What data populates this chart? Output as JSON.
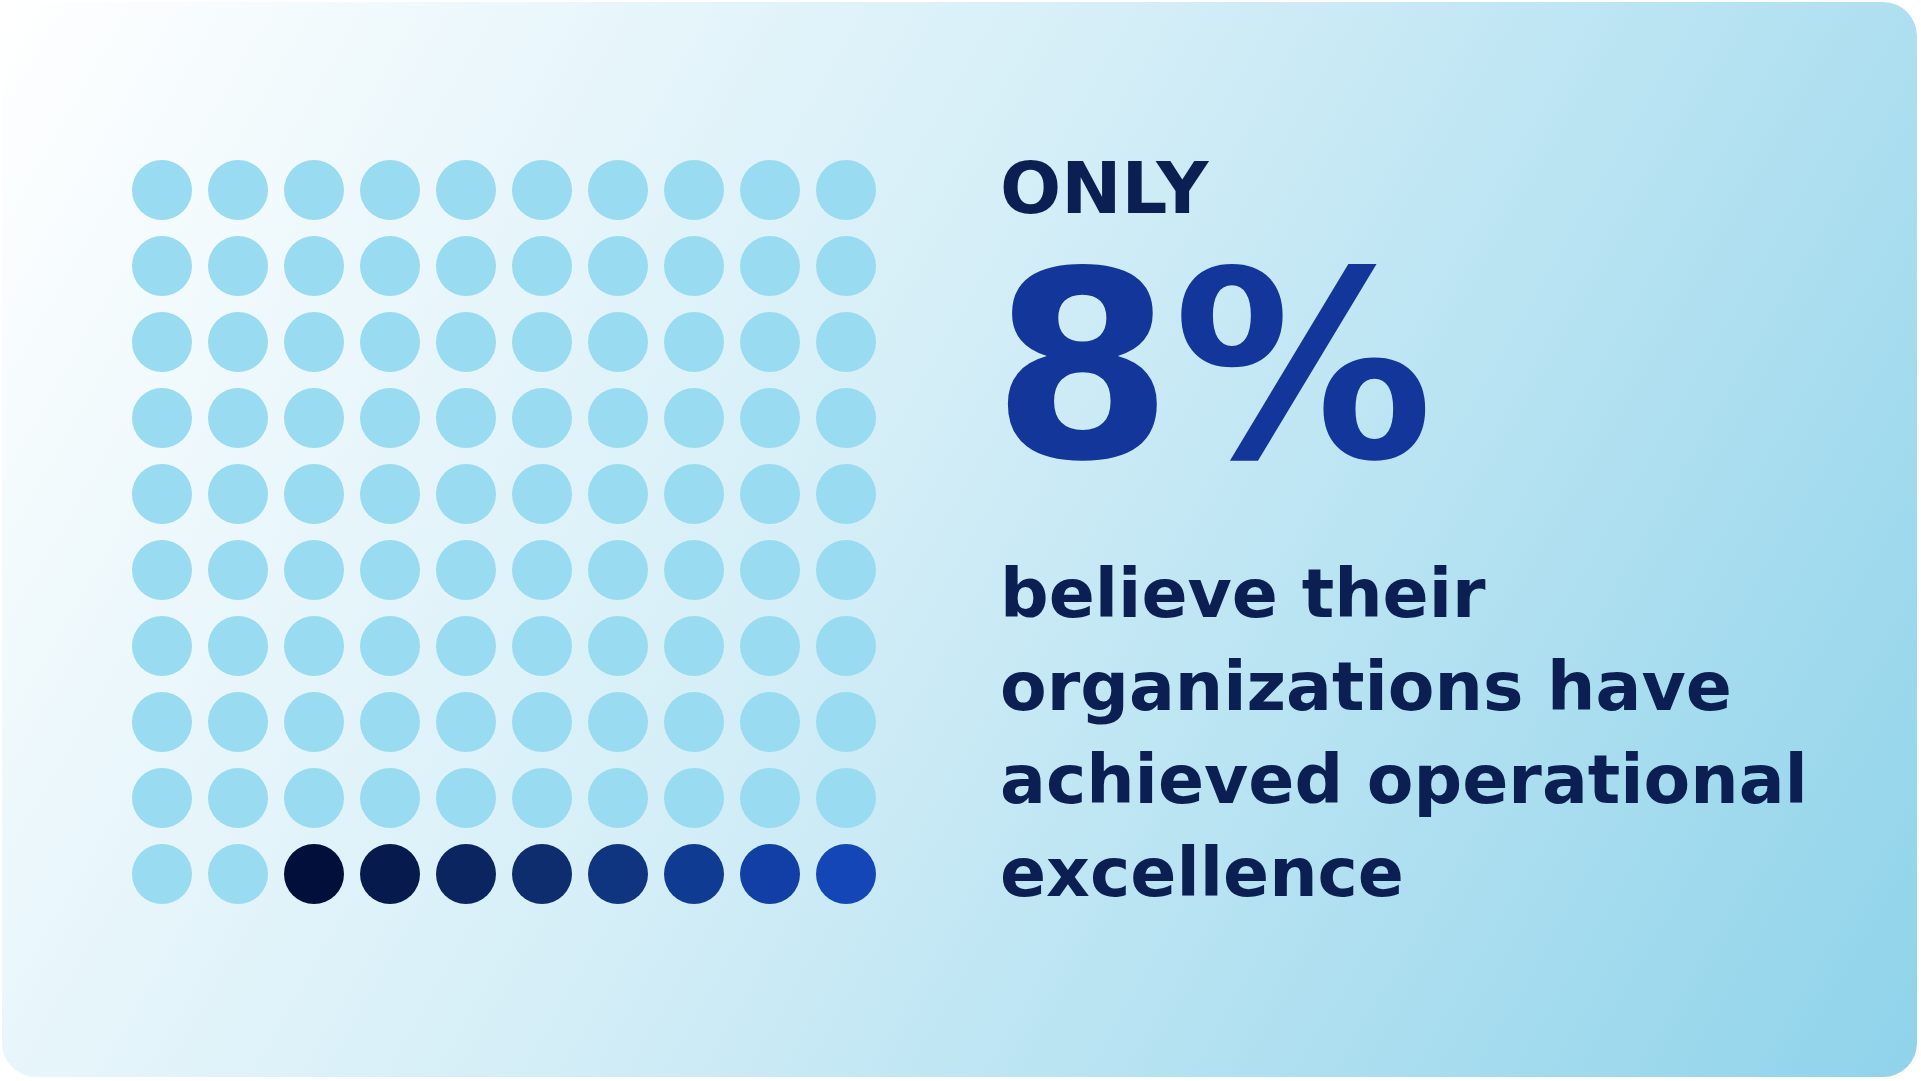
{
  "chart_data": {
    "type": "other",
    "title": "ONLY",
    "values": [
      8
    ],
    "value_labels": [
      "8%"
    ],
    "annotations": [
      "believe their organizations have achieved operational excellence"
    ]
  }
}
